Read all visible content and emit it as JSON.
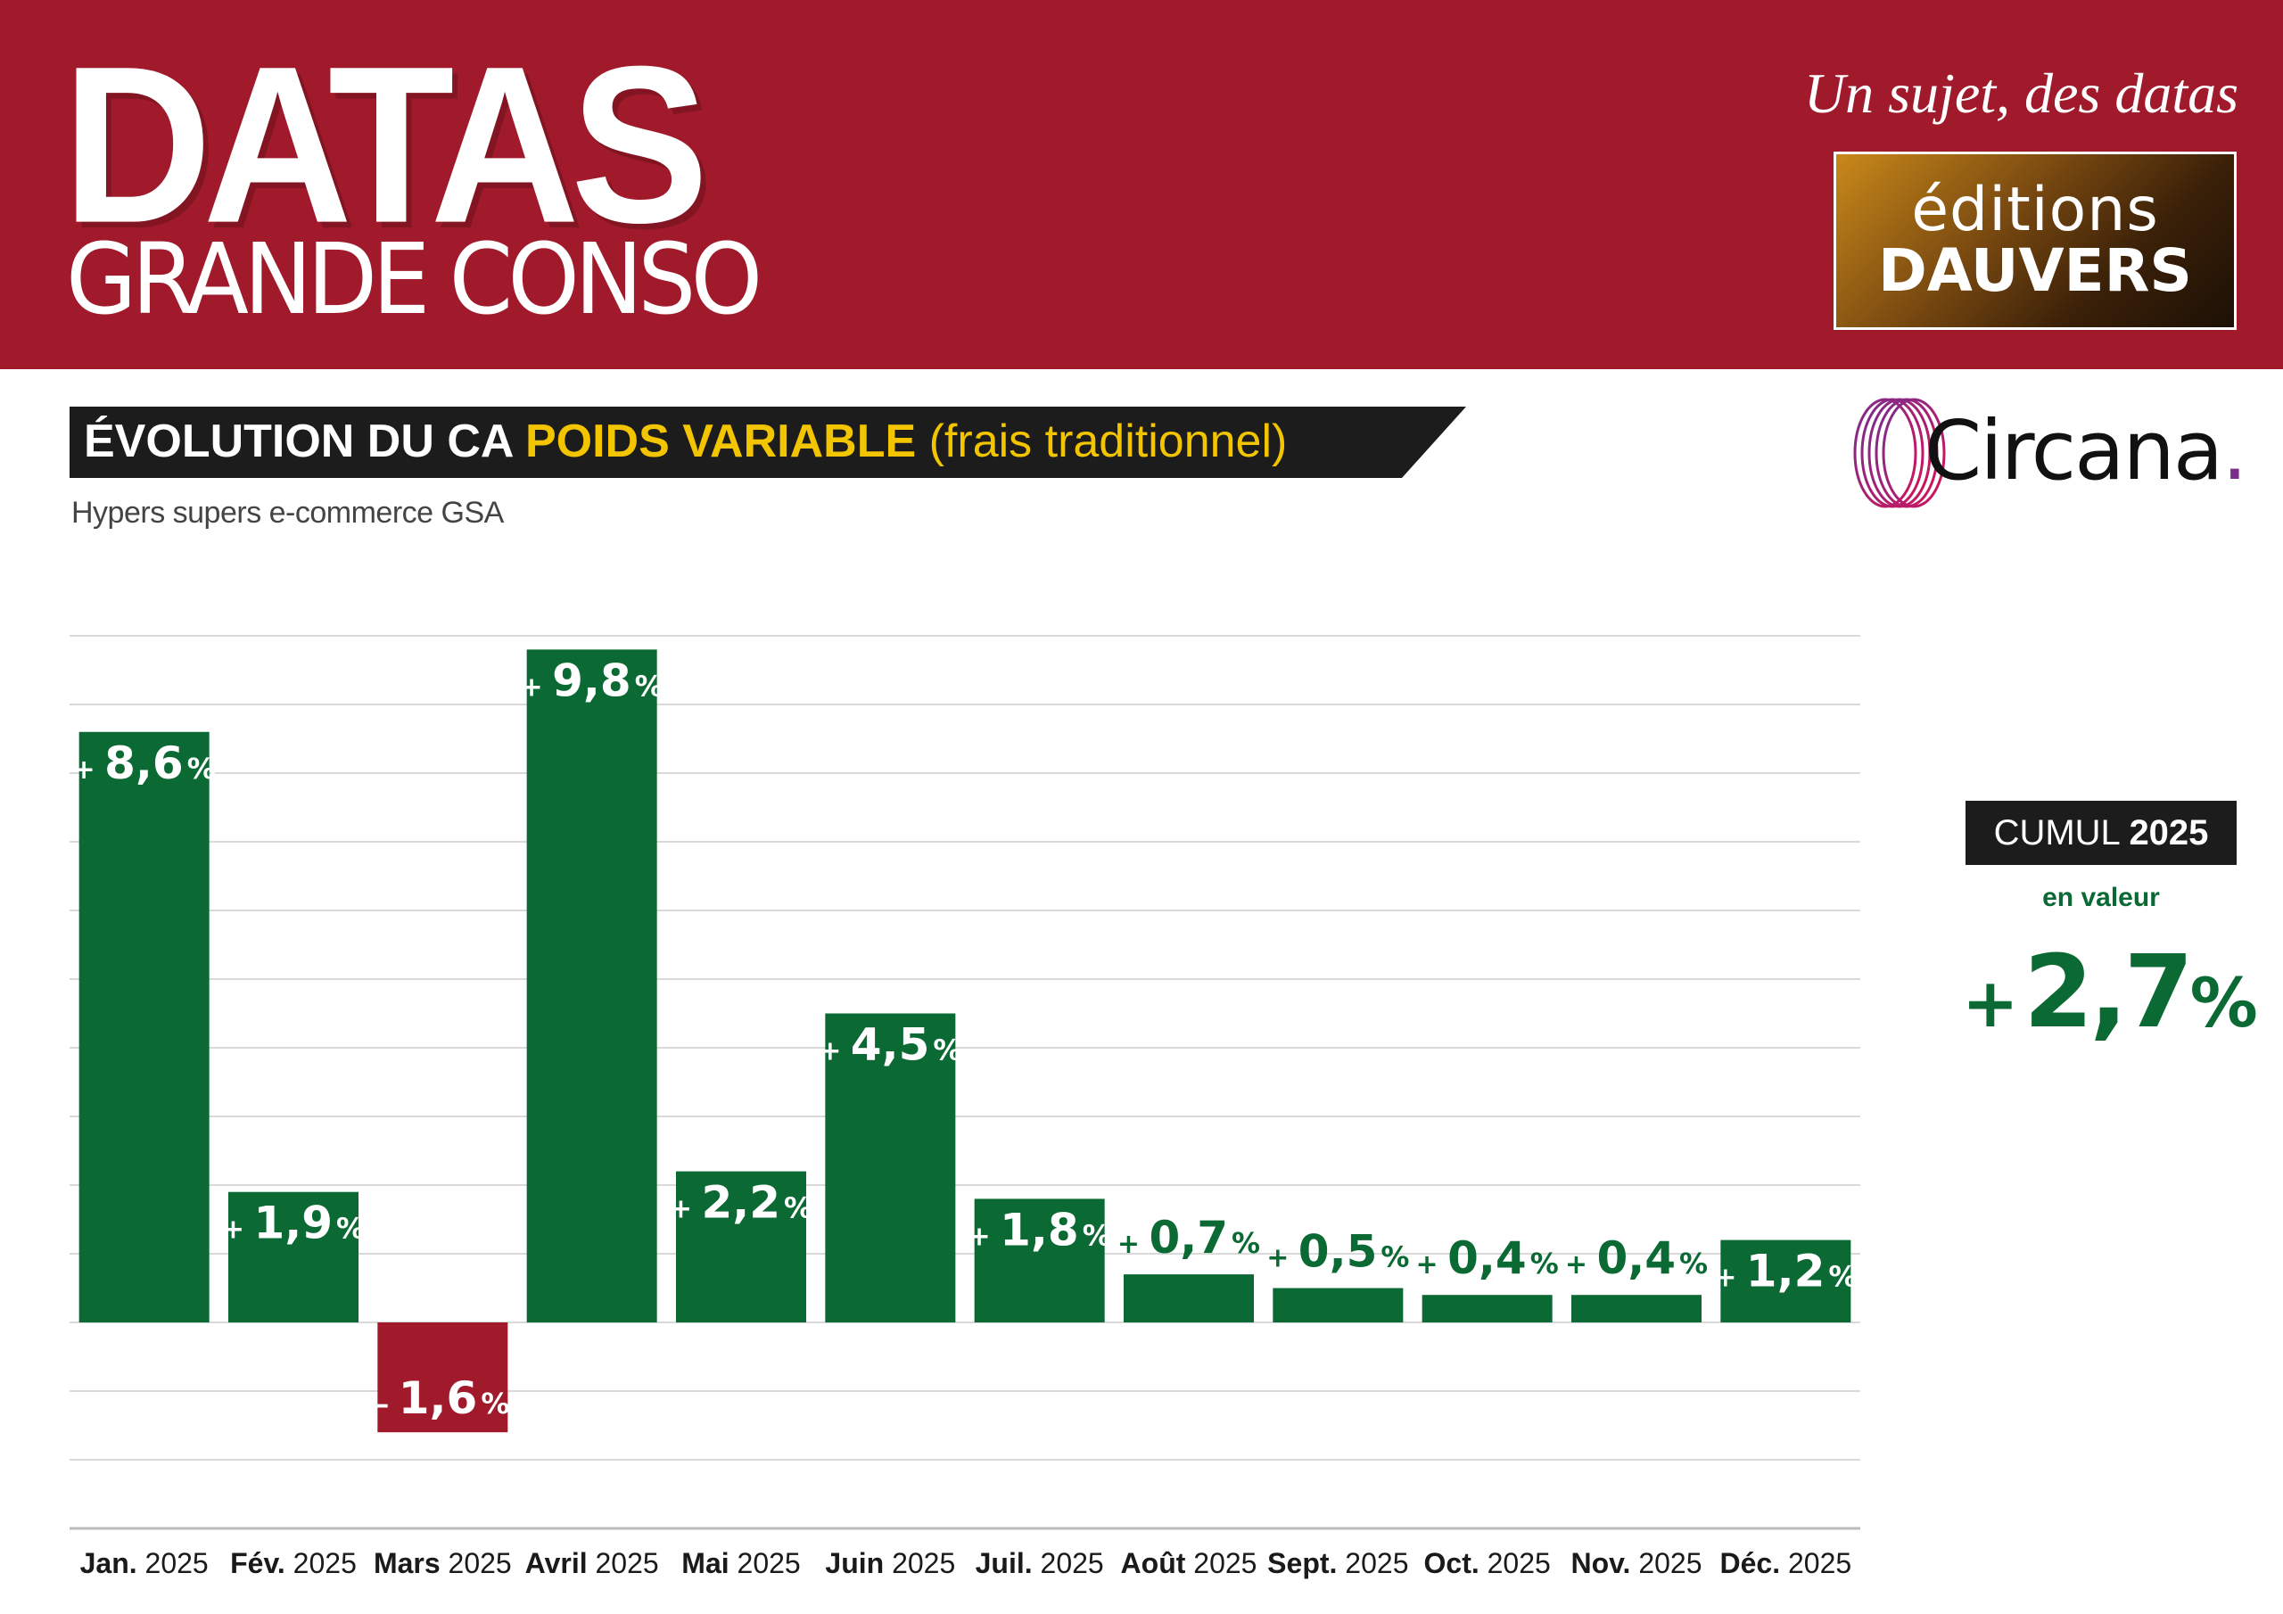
{
  "header": {
    "brand_title": "DATAS",
    "brand_subtitle": "GRANDE CONSO",
    "tagline": "Un sujet, des datas",
    "publisher_line1": "éditions",
    "publisher_line2": "DAUVERS",
    "background_color": "#a01a2b"
  },
  "chart_header": {
    "title_part1": "ÉVOLUTION DU CA ",
    "title_part2": "POIDS VARIABLE",
    "title_part3": " (frais traditionnel)",
    "subtitle": "Hypers supers e-commerce GSA",
    "source_name": "Circana",
    "source_dot": "."
  },
  "cumul": {
    "label_prefix": "CUMUL ",
    "label_year": "2025",
    "caption": "en valeur",
    "sign": "+",
    "value": "2,7",
    "unit": "%"
  },
  "colors": {
    "positive": "#0b6a34",
    "negative": "#a01a2b",
    "grid": "#d9d9d9"
  },
  "chart_data": {
    "type": "bar",
    "title": "ÉVOLUTION DU CA POIDS VARIABLE (frais traditionnel)",
    "subtitle": "Hypers supers e-commerce GSA",
    "unit": "%",
    "ylim": [
      -3,
      10
    ],
    "grid": true,
    "legend": "none",
    "categories": [
      {
        "month": "Jan.",
        "year": "2025"
      },
      {
        "month": "Fév.",
        "year": "2025"
      },
      {
        "month": "Mars",
        "year": "2025"
      },
      {
        "month": "Avril",
        "year": "2025"
      },
      {
        "month": "Mai",
        "year": "2025"
      },
      {
        "month": "Juin",
        "year": "2025"
      },
      {
        "month": "Juil.",
        "year": "2025"
      },
      {
        "month": "Août",
        "year": "2025"
      },
      {
        "month": "Sept.",
        "year": "2025"
      },
      {
        "month": "Oct.",
        "year": "2025"
      },
      {
        "month": "Nov.",
        "year": "2025"
      },
      {
        "month": "Déc.",
        "year": "2025"
      }
    ],
    "values": [
      8.6,
      1.9,
      -1.6,
      9.8,
      2.2,
      4.5,
      1.8,
      0.7,
      0.5,
      0.4,
      0.4,
      1.2
    ],
    "labels": [
      {
        "sign": "+",
        "num": "8,6",
        "unit": "%"
      },
      {
        "sign": "+",
        "num": "1,9",
        "unit": "%"
      },
      {
        "sign": "–",
        "num": "1,6",
        "unit": "%"
      },
      {
        "sign": "+",
        "num": "9,8",
        "unit": "%"
      },
      {
        "sign": "+",
        "num": "2,2",
        "unit": "%"
      },
      {
        "sign": "+",
        "num": "4,5",
        "unit": "%"
      },
      {
        "sign": "+",
        "num": "1,8",
        "unit": "%"
      },
      {
        "sign": "+",
        "num": "0,7",
        "unit": "%"
      },
      {
        "sign": "+",
        "num": "0,5",
        "unit": "%"
      },
      {
        "sign": "+",
        "num": "0,4",
        "unit": "%"
      },
      {
        "sign": "+",
        "num": "0,4",
        "unit": "%"
      },
      {
        "sign": "+",
        "num": "1,2",
        "unit": "%"
      }
    ]
  }
}
